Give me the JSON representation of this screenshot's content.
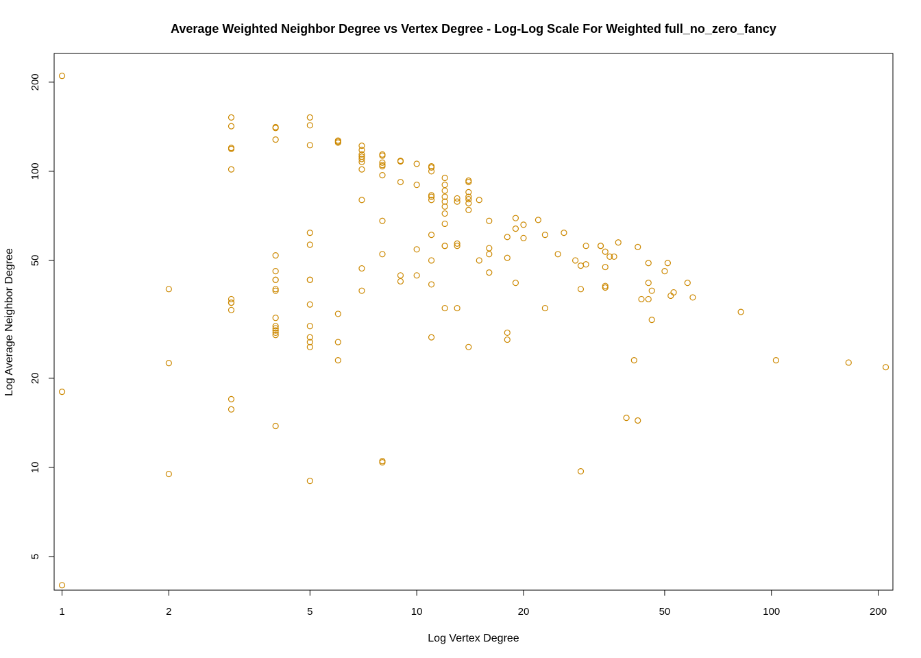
{
  "chart_data": {
    "type": "scatter",
    "title": "Average Weighted Neighbor Degree vs Vertex Degree - Log-Log Scale For Weighted full_no_zero_fancy",
    "xlabel": "Log Vertex Degree",
    "ylabel": "Log Average Neighbor Degree",
    "x_scale": "log",
    "y_scale": "log",
    "xlim": [
      0.95,
      220
    ],
    "ylim": [
      3.85,
      250
    ],
    "x_ticks": [
      1,
      2,
      5,
      10,
      20,
      50,
      100,
      200
    ],
    "x_tick_labels": [
      "1",
      "2",
      "5",
      "10",
      "20",
      "50",
      "100",
      "200"
    ],
    "y_ticks": [
      5,
      10,
      20,
      50,
      100,
      200
    ],
    "y_tick_labels": [
      "5",
      "10",
      "20",
      "50",
      "100",
      "200"
    ],
    "grid": false,
    "legend": "none",
    "point_color": "#cc8800",
    "series": [
      {
        "points": [
          [
            1,
            210
          ],
          [
            1,
            18
          ],
          [
            1,
            4
          ],
          [
            2,
            40
          ],
          [
            2,
            22.5
          ],
          [
            2,
            9.5
          ],
          [
            3,
            152
          ],
          [
            3,
            142
          ],
          [
            3,
            120
          ],
          [
            3,
            119
          ],
          [
            3,
            101.5
          ],
          [
            3,
            37
          ],
          [
            3,
            36
          ],
          [
            3,
            36
          ],
          [
            3,
            34
          ],
          [
            3,
            17
          ],
          [
            3,
            15.7
          ],
          [
            4,
            141
          ],
          [
            4,
            140
          ],
          [
            4,
            128
          ],
          [
            4,
            52
          ],
          [
            4,
            46
          ],
          [
            4,
            43
          ],
          [
            4,
            43
          ],
          [
            4,
            40
          ],
          [
            4,
            39.5
          ],
          [
            4,
            32
          ],
          [
            4,
            30
          ],
          [
            4,
            29.5
          ],
          [
            4,
            29
          ],
          [
            4,
            28.5
          ],
          [
            4,
            28
          ],
          [
            4,
            13.8
          ],
          [
            5,
            152
          ],
          [
            5,
            143
          ],
          [
            5,
            122.5
          ],
          [
            5,
            62
          ],
          [
            5,
            56.5
          ],
          [
            5,
            43
          ],
          [
            5,
            43
          ],
          [
            5,
            35.5
          ],
          [
            5,
            30
          ],
          [
            5,
            27.5
          ],
          [
            5,
            26.5
          ],
          [
            5,
            25.5
          ],
          [
            5,
            9
          ],
          [
            6,
            127
          ],
          [
            6,
            126
          ],
          [
            6,
            125
          ],
          [
            6,
            33
          ],
          [
            6,
            26.5
          ],
          [
            6,
            23
          ],
          [
            7,
            122
          ],
          [
            7,
            118
          ],
          [
            7,
            114
          ],
          [
            7,
            112
          ],
          [
            7,
            110
          ],
          [
            7,
            107.5
          ],
          [
            7,
            101.5
          ],
          [
            7,
            80
          ],
          [
            7,
            47
          ],
          [
            7,
            39.5
          ],
          [
            8,
            114
          ],
          [
            8,
            113
          ],
          [
            8,
            107
          ],
          [
            8,
            105
          ],
          [
            8,
            104
          ],
          [
            8,
            97
          ],
          [
            8,
            68
          ],
          [
            8,
            52.5
          ],
          [
            8,
            10.5
          ],
          [
            8,
            10.4
          ],
          [
            9,
            108.5
          ],
          [
            9,
            108
          ],
          [
            9,
            92
          ],
          [
            9,
            44.5
          ],
          [
            9,
            42.5
          ],
          [
            10,
            106
          ],
          [
            10,
            90
          ],
          [
            10,
            54.5
          ],
          [
            10,
            44.5
          ],
          [
            11,
            104
          ],
          [
            11,
            103
          ],
          [
            11,
            100
          ],
          [
            11,
            83
          ],
          [
            11,
            82
          ],
          [
            11,
            80
          ],
          [
            11,
            61
          ],
          [
            11,
            50
          ],
          [
            11,
            41.5
          ],
          [
            11,
            27.5
          ],
          [
            12,
            95
          ],
          [
            12,
            90
          ],
          [
            12,
            86
          ],
          [
            12,
            82
          ],
          [
            12,
            79
          ],
          [
            12,
            76
          ],
          [
            12,
            72
          ],
          [
            12,
            66.5
          ],
          [
            12,
            56
          ],
          [
            12,
            56
          ],
          [
            12,
            34.5
          ],
          [
            13,
            81
          ],
          [
            13,
            79
          ],
          [
            13,
            57
          ],
          [
            13,
            56
          ],
          [
            13,
            34.5
          ],
          [
            14,
            93
          ],
          [
            14,
            92
          ],
          [
            14,
            85
          ],
          [
            14,
            82
          ],
          [
            14,
            80.5
          ],
          [
            14,
            78
          ],
          [
            14,
            74
          ],
          [
            14,
            25.5
          ],
          [
            15,
            80
          ],
          [
            15,
            50
          ],
          [
            16,
            68
          ],
          [
            16,
            55
          ],
          [
            16,
            52.5
          ],
          [
            16,
            45.5
          ],
          [
            18,
            60
          ],
          [
            18,
            51
          ],
          [
            18,
            28.5
          ],
          [
            18,
            27
          ],
          [
            19,
            69.5
          ],
          [
            19,
            64
          ],
          [
            19,
            42
          ],
          [
            20,
            66
          ],
          [
            20,
            59.5
          ],
          [
            22,
            68.5
          ],
          [
            23,
            61
          ],
          [
            23,
            34.5
          ],
          [
            25,
            52.5
          ],
          [
            26,
            62
          ],
          [
            28,
            50
          ],
          [
            29,
            48
          ],
          [
            29,
            40
          ],
          [
            29,
            9.7
          ],
          [
            30,
            56
          ],
          [
            30,
            48.5
          ],
          [
            33,
            56
          ],
          [
            33,
            56
          ],
          [
            34,
            53.5
          ],
          [
            34,
            47.5
          ],
          [
            34,
            41
          ],
          [
            34,
            40.5
          ],
          [
            35,
            51.5
          ],
          [
            36,
            51.5
          ],
          [
            37,
            57.5
          ],
          [
            39,
            14.7
          ],
          [
            41,
            23
          ],
          [
            42,
            55.5
          ],
          [
            42,
            14.4
          ],
          [
            43,
            37
          ],
          [
            45,
            49
          ],
          [
            45,
            42
          ],
          [
            45,
            37
          ],
          [
            46,
            39.5
          ],
          [
            46,
            31.5
          ],
          [
            50,
            46
          ],
          [
            51,
            49
          ],
          [
            52,
            38
          ],
          [
            53,
            39
          ],
          [
            58,
            42
          ],
          [
            60,
            37.5
          ],
          [
            82,
            33.5
          ],
          [
            103,
            23
          ],
          [
            165,
            22.6
          ],
          [
            210,
            21.8
          ]
        ]
      }
    ]
  }
}
